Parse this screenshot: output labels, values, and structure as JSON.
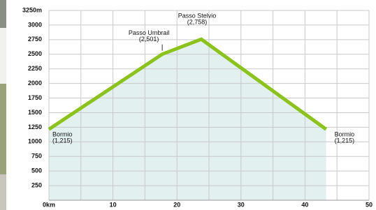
{
  "chart_data": {
    "type": "line",
    "x": [
      0,
      17.7,
      23.8,
      43.3
    ],
    "values": [
      1215,
      2501,
      2758,
      1215
    ],
    "point_names": [
      "Bormio",
      "Passo Umbrail",
      "Passo Stelvio",
      "Bormio"
    ],
    "value_labels": [
      "(1,215)",
      "(2,501)",
      "(2,758)",
      "(1,215)"
    ],
    "color": "#8cc21e",
    "fill_color": "#e2f0f0",
    "xlim": [
      0,
      50
    ],
    "xticks": [
      {
        "value": 0,
        "label": "0km"
      },
      10,
      20,
      30,
      40,
      50
    ],
    "x_minor_ticks": [
      5,
      15,
      25,
      35,
      45
    ],
    "ylim": [
      0,
      3250
    ],
    "yticks": [
      250,
      500,
      750,
      1000,
      1250,
      1500,
      1750,
      2000,
      2250,
      2500,
      2750,
      3000,
      {
        "value": 3250,
        "label": "3250m"
      }
    ],
    "grid": true
  }
}
